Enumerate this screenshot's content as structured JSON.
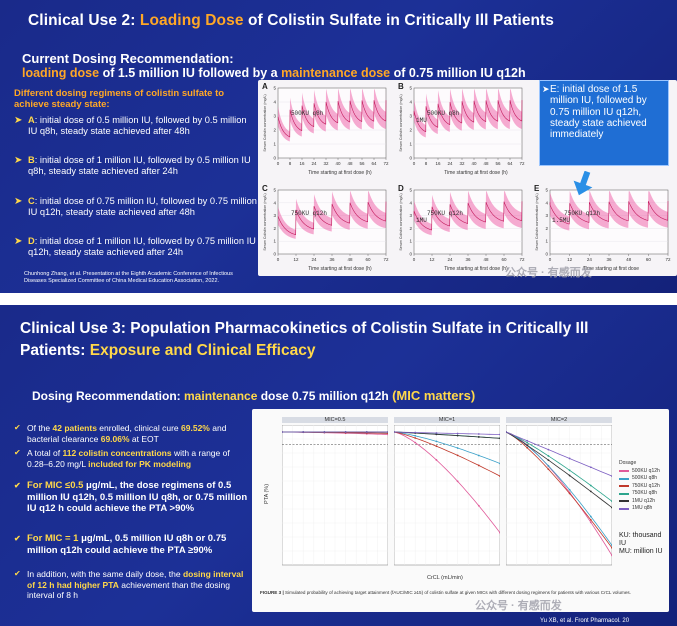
{
  "slide1": {
    "title_a": "Clinical Use 2: ",
    "title_b": "Loading Dose",
    "title_c": " of Colistin Sulfate in Critically Ill Patients",
    "sub_label": "Current Dosing Recommendation:",
    "sub_line": {
      "a": "loading dose",
      "b": " of 1.5 million IU followed by a ",
      "c": "maintenance dose",
      "d": " of 0.75 million IU q12h"
    },
    "regimen_heading": "Different dosing regimens of colistin sulfate to achieve steady state:",
    "regimens": [
      {
        "letter": "A",
        "text": ": initial dose of 0.5 million IU, followed by 0.5 million IU q8h, steady state achieved after 48h"
      },
      {
        "letter": "B",
        "text": ": initial dose of 1 million IU, followed by 0.5 million IU q8h, steady state achieved after 24h"
      },
      {
        "letter": "C",
        "text": ": initial dose of 0.75 million IU, followed by 0.75 million IU q12h, steady state achieved after 48h"
      },
      {
        "letter": "D",
        "text": ": initial dose of 1 million IU, followed by 0.75 million IU q12h, steady state achieved after 24h"
      }
    ],
    "citation": "Chunhong Zhang, et al. Presentation at the Eighth Academic Conference of Infectious Diseases Specialized Committee of China Medical Education Association, 2022.",
    "panels": [
      {
        "letter": "A",
        "dose": "500KU q8h",
        "initial": "",
        "xlabel": "Time starting at first dose (h)"
      },
      {
        "letter": "B",
        "dose": "500KU q8h",
        "initial": "1MU",
        "xlabel": "Time starting at first dose (h)"
      },
      {
        "letter": "C",
        "dose": "750KU q12h",
        "initial": "",
        "xlabel": "Time starting at first dose (h)"
      },
      {
        "letter": "D",
        "dose": "750KU q12h",
        "initial": "1MU",
        "xlabel": "Time starting at first dose (h)"
      },
      {
        "letter": "E",
        "dose": "750KU q12h",
        "initial": "1.5MU",
        "xlabel": "Time starting at first dose"
      }
    ],
    "ylabel": "Serum Colistin concentration (mg/L)",
    "xticks_8": [
      "0",
      "8",
      "16",
      "24",
      "32",
      "40",
      "48",
      "56",
      "64",
      "72"
    ],
    "xticks_12": [
      "0",
      "12",
      "24",
      "36",
      "48",
      "60",
      "72"
    ],
    "yticks": [
      "0",
      "1",
      "2",
      "3",
      "4",
      "5"
    ],
    "callout": "E: initial dose of 1.5 million IU, followed by 0.75 million IU q12h, steady state achieved immediately",
    "watermark": "公众号 · 有感而发"
  },
  "slide2": {
    "title_a": "Clinical Use 3: ",
    "title_b": "Population Pharmacokinetics of Colistin Sulfate in Critically Ill",
    "title_c": "Patients: ",
    "title_d": "Exposure and Clinical Efficacy",
    "dosing_a": "Dosing Recommendation: ",
    "dosing_b": "maintenance",
    "dosing_c": " dose 0.75 million q12h ",
    "dosing_d": "(MIC matters)",
    "bullets": [
      {
        "parts": [
          [
            "w",
            "Of the "
          ],
          [
            "y",
            "42 patients"
          ],
          [
            "w",
            " enrolled, clinical cure "
          ],
          [
            "y",
            "69.52%"
          ],
          [
            "w",
            " and bacterial clearance "
          ],
          [
            "y",
            "69.06%"
          ],
          [
            "w",
            " at EOT"
          ]
        ],
        "big": false
      },
      {
        "parts": [
          [
            "w",
            "A total of "
          ],
          [
            "y",
            "112 colistin concentrations"
          ],
          [
            "w",
            " with a range of 0.28–6.20 mg/L "
          ],
          [
            "y",
            "included for PK modeling"
          ]
        ],
        "big": false
      },
      {
        "parts": [
          [
            "y",
            "For MIC ≤0.5"
          ],
          [
            "w",
            " μg/mL, the dose regimens of 0.5 million IU q12h, 0.5 million IU q8h, or 0.75 million IU q12 h could achieve the PTA >90%"
          ]
        ],
        "big": true
      },
      {
        "parts": [
          [
            "y",
            "For MIC = 1"
          ],
          [
            "w",
            " μg/mL, 0.5 million IU q8h or 0.75 million q12h could achieve the PTA ≥90%"
          ]
        ],
        "big": true
      },
      {
        "parts": [
          [
            "w",
            "In addition, with the same daily dose, the "
          ],
          [
            "y",
            "dosing interval of 12 h had higher PTA"
          ],
          [
            "w",
            " achievement than the dosing interval of 8 h"
          ]
        ],
        "big": false
      }
    ],
    "mic_heads": [
      "MIC=0.5",
      "MIC=1",
      "MIC=2"
    ],
    "ylabel": "PTA (%)",
    "xlabel": "CrCL (mL/min)",
    "dosage_title": "Dosage",
    "dosage_items": [
      {
        "label": "500KU q12h",
        "color": "#e05a9a"
      },
      {
        "label": "500KU q8h",
        "color": "#3aa0c8"
      },
      {
        "label": "750KU q12h",
        "color": "#c0392b"
      },
      {
        "label": "750KU q8h",
        "color": "#2ca58d"
      },
      {
        "label": "1MU q12h",
        "color": "#333333"
      },
      {
        "label": "1MU q8h",
        "color": "#7d5fc2"
      }
    ],
    "ku_note_1": "KU: thousand IU",
    "ku_note_2": "MU: million IU",
    "caption_a": "FIGURE 3 | ",
    "caption_b": "Simulated probability of achieving target attainment (fAUC/MIC ≥15) of colistin sulfate at given MICs with different dosing regimens for patients with various CrCL volumes.",
    "reference": "Yu XB, et al. Front Pharmacol. 20",
    "watermark": "公众号 · 有感而发"
  }
}
